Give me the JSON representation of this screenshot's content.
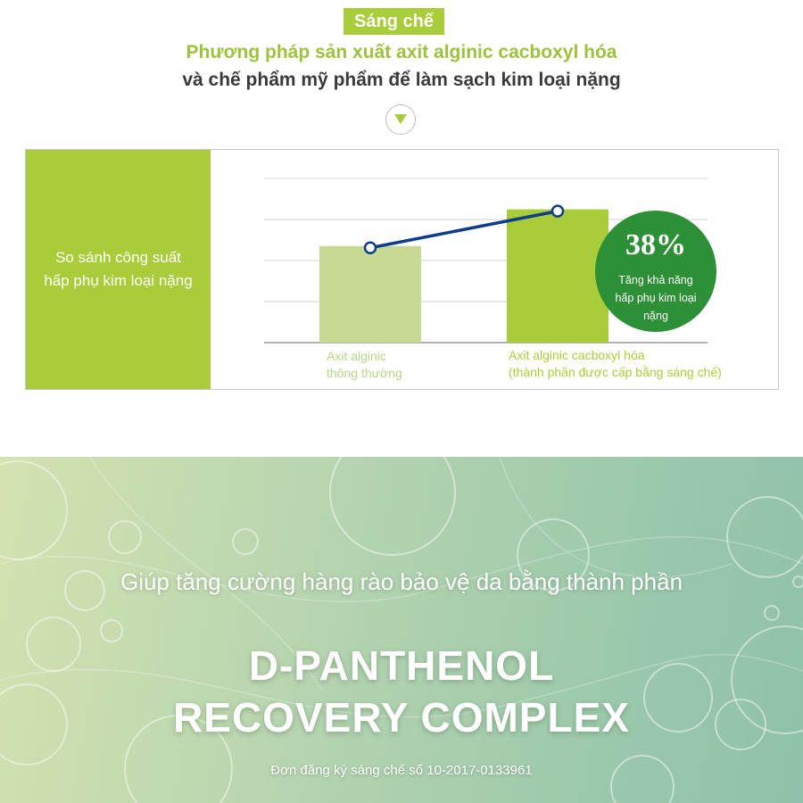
{
  "header": {
    "badge": "Sáng chế",
    "headline_line1": "Phương pháp sản xuất axit alginic cacboxyl hóa",
    "headline_line2": "và chế phẩm mỹ phẩm để làm sạch kim loại nặng"
  },
  "chart_data": {
    "type": "bar",
    "title": "So sánh công suất\nhấp phụ kim loại nặng",
    "categories": [
      "Axit alginic\nthông thường",
      "Axit alginic cacboxyl hóa\n(thành phần được cấp bằng sáng chế)"
    ],
    "values": [
      100,
      138
    ],
    "ylim": [
      0,
      170
    ],
    "grid": true,
    "bar_colors": [
      "#c8d993",
      "#a9cd3a"
    ],
    "line_color": "#0f3d8a",
    "callout": {
      "value": "38%",
      "text": "Tăng khả năng\nhấp phụ kim loại\nnặng",
      "color": "#2d8f36"
    }
  },
  "banner": {
    "subtitle": "Giúp tăng cường hàng rào bảo vệ da bằng thành phần",
    "title": "D-PANTHENOL\nRECOVERY COMPLEX",
    "note": "Đơn đăng ký sáng chế số 10-2017-0133961"
  }
}
